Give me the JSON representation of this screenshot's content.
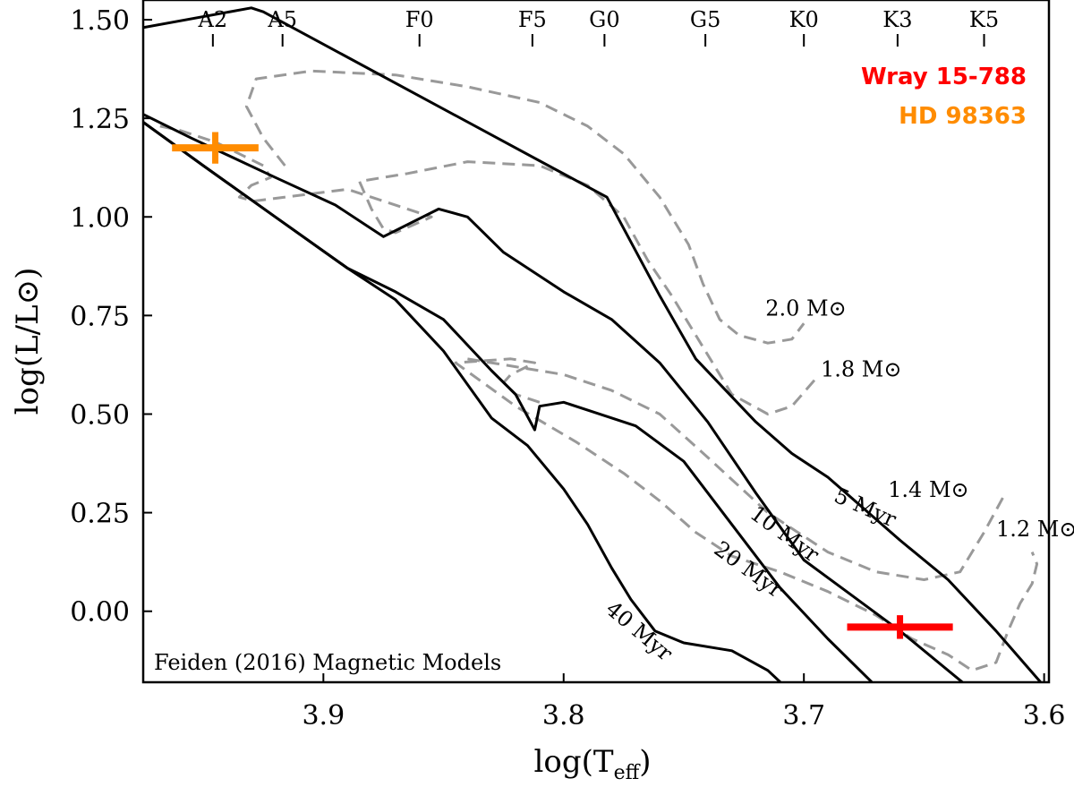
{
  "chart_data": {
    "type": "line",
    "xlabel": "log(T",
    "xlabel_sub": "eff",
    "xlabel_close": ")",
    "ylabel": "log(L/L",
    "ylabel_close": ")",
    "xlim": [
      3.975,
      3.598
    ],
    "ylim": [
      -0.18,
      1.55
    ],
    "xticks": [
      3.9,
      3.8,
      3.7,
      3.6
    ],
    "xtick_labels": [
      "3.9",
      "3.8",
      "3.7",
      "3.6"
    ],
    "yticks": [
      1.5,
      1.25,
      1.0,
      0.75,
      0.5,
      0.25,
      0.0
    ],
    "ytick_labels": [
      "1.50",
      "1.25",
      "1.00",
      "0.75",
      "0.50",
      "0.25",
      "0.00"
    ],
    "spectral_types": [
      {
        "label": "A2",
        "x": 3.946
      },
      {
        "label": "A5",
        "x": 3.917
      },
      {
        "label": "F0",
        "x": 3.86
      },
      {
        "label": "F5",
        "x": 3.813
      },
      {
        "label": "G0",
        "x": 3.783
      },
      {
        "label": "G5",
        "x": 3.741
      },
      {
        "label": "K0",
        "x": 3.7
      },
      {
        "label": "K3",
        "x": 3.661
      },
      {
        "label": "K5",
        "x": 3.625
      }
    ],
    "isochrones": [
      {
        "name": "5 Myr",
        "label": "5 Myr",
        "label_x": 3.688,
        "label_y": 0.28,
        "label_angle": 24,
        "points": [
          [
            3.975,
            1.48
          ],
          [
            3.93,
            1.53
          ],
          [
            3.925,
            1.52
          ],
          [
            3.782,
            1.05
          ],
          [
            3.76,
            0.8
          ],
          [
            3.745,
            0.64
          ],
          [
            3.72,
            0.48
          ],
          [
            3.705,
            0.4
          ],
          [
            3.69,
            0.34
          ],
          [
            3.66,
            0.18
          ],
          [
            3.64,
            0.08
          ],
          [
            3.62,
            -0.05
          ],
          [
            3.6,
            -0.19
          ]
        ]
      },
      {
        "name": "10 Myr",
        "label": "10 Myr",
        "label_x": 3.723,
        "label_y": 0.24,
        "label_angle": 36,
        "points": [
          [
            3.975,
            1.26
          ],
          [
            3.955,
            1.2
          ],
          [
            3.92,
            1.1
          ],
          [
            3.895,
            1.03
          ],
          [
            3.875,
            0.95
          ],
          [
            3.852,
            1.02
          ],
          [
            3.84,
            1.0
          ],
          [
            3.825,
            0.91
          ],
          [
            3.8,
            0.81
          ],
          [
            3.78,
            0.74
          ],
          [
            3.76,
            0.63
          ],
          [
            3.74,
            0.48
          ],
          [
            3.72,
            0.3
          ],
          [
            3.7,
            0.13
          ],
          [
            3.68,
            0.04
          ],
          [
            3.66,
            -0.05
          ],
          [
            3.632,
            -0.19
          ]
        ]
      },
      {
        "name": "20 Myr",
        "label": "20 Myr",
        "label_x": 3.738,
        "label_y": 0.15,
        "label_angle": 36,
        "points": [
          [
            3.975,
            1.24
          ],
          [
            3.95,
            1.13
          ],
          [
            3.92,
            1.0
          ],
          [
            3.89,
            0.87
          ],
          [
            3.87,
            0.81
          ],
          [
            3.85,
            0.74
          ],
          [
            3.83,
            0.61
          ],
          [
            3.82,
            0.55
          ],
          [
            3.812,
            0.46
          ],
          [
            3.81,
            0.52
          ],
          [
            3.8,
            0.53
          ],
          [
            3.79,
            0.51
          ],
          [
            3.77,
            0.47
          ],
          [
            3.75,
            0.38
          ],
          [
            3.73,
            0.22
          ],
          [
            3.71,
            0.06
          ],
          [
            3.69,
            -0.07
          ],
          [
            3.67,
            -0.19
          ]
        ]
      },
      {
        "name": "40 Myr",
        "label": "40 Myr",
        "label_x": 3.783,
        "label_y": 0.0,
        "label_angle": 40,
        "points": [
          [
            3.975,
            1.24
          ],
          [
            3.95,
            1.13
          ],
          [
            3.92,
            1.0
          ],
          [
            3.89,
            0.87
          ],
          [
            3.87,
            0.79
          ],
          [
            3.85,
            0.66
          ],
          [
            3.83,
            0.49
          ],
          [
            3.815,
            0.42
          ],
          [
            3.8,
            0.31
          ],
          [
            3.79,
            0.22
          ],
          [
            3.78,
            0.11
          ],
          [
            3.772,
            0.03
          ],
          [
            3.762,
            -0.05
          ],
          [
            3.75,
            -0.08
          ],
          [
            3.73,
            -0.1
          ],
          [
            3.715,
            -0.15
          ],
          [
            3.708,
            -0.19
          ]
        ]
      }
    ],
    "mass_tracks": [
      {
        "name": "2.0 M",
        "label": "2.0 M",
        "label_x": 3.716,
        "label_y": 0.75,
        "points": [
          [
            3.916,
            1.13
          ],
          [
            3.925,
            1.2
          ],
          [
            3.932,
            1.28
          ],
          [
            3.928,
            1.35
          ],
          [
            3.905,
            1.37
          ],
          [
            3.87,
            1.36
          ],
          [
            3.84,
            1.33
          ],
          [
            3.81,
            1.29
          ],
          [
            3.79,
            1.23
          ],
          [
            3.775,
            1.16
          ],
          [
            3.76,
            1.05
          ],
          [
            3.748,
            0.93
          ],
          [
            3.742,
            0.83
          ],
          [
            3.735,
            0.74
          ],
          [
            3.727,
            0.7
          ],
          [
            3.715,
            0.68
          ],
          [
            3.705,
            0.69
          ],
          [
            3.7,
            0.73
          ]
        ]
      },
      {
        "name": "1.8 M",
        "label": "1.8 M",
        "label_x": 3.693,
        "label_y": 0.595,
        "points": [
          [
            3.968,
            1.23
          ],
          [
            3.96,
            1.22
          ],
          [
            3.945,
            1.19
          ],
          [
            3.935,
            1.16
          ],
          [
            3.925,
            1.13
          ],
          [
            3.922,
            1.1
          ],
          [
            3.93,
            1.08
          ],
          [
            3.935,
            1.05
          ],
          [
            3.929,
            1.04
          ],
          [
            3.89,
            1.07
          ],
          [
            3.855,
            1.0
          ],
          [
            3.87,
            0.96
          ],
          [
            3.875,
            0.97
          ],
          [
            3.88,
            1.02
          ],
          [
            3.885,
            1.09
          ],
          [
            3.865,
            1.11
          ],
          [
            3.84,
            1.14
          ],
          [
            3.81,
            1.13
          ],
          [
            3.79,
            1.08
          ],
          [
            3.775,
            1.0
          ],
          [
            3.765,
            0.89
          ],
          [
            3.755,
            0.8
          ],
          [
            3.745,
            0.7
          ],
          [
            3.73,
            0.55
          ],
          [
            3.715,
            0.5
          ],
          [
            3.705,
            0.52
          ],
          [
            3.695,
            0.59
          ]
        ]
      },
      {
        "name": "1.4 M",
        "label": "1.4 M",
        "label_x": 3.665,
        "label_y": 0.29,
        "points": [
          [
            3.84,
            0.64
          ],
          [
            3.82,
            0.62
          ],
          [
            3.8,
            0.6
          ],
          [
            3.78,
            0.56
          ],
          [
            3.76,
            0.5
          ],
          [
            3.74,
            0.39
          ],
          [
            3.715,
            0.25
          ],
          [
            3.69,
            0.15
          ],
          [
            3.67,
            0.1
          ],
          [
            3.65,
            0.08
          ],
          [
            3.635,
            0.1
          ],
          [
            3.625,
            0.2
          ],
          [
            3.617,
            0.29
          ]
        ]
      },
      {
        "name": "1.2 M",
        "label": "1.2 M",
        "label_x": 3.62,
        "label_y": 0.19,
        "points": [
          [
            3.81,
            0.53
          ],
          [
            3.82,
            0.55
          ],
          [
            3.825,
            0.58
          ],
          [
            3.822,
            0.6
          ],
          [
            3.812,
            0.63
          ],
          [
            3.822,
            0.64
          ],
          [
            3.845,
            0.63
          ],
          [
            3.82,
            0.52
          ],
          [
            3.795,
            0.43
          ],
          [
            3.775,
            0.35
          ],
          [
            3.76,
            0.28
          ],
          [
            3.745,
            0.2
          ],
          [
            3.73,
            0.14
          ],
          [
            3.71,
            0.1
          ],
          [
            3.69,
            0.05
          ],
          [
            3.67,
            -0.01
          ],
          [
            3.655,
            -0.07
          ],
          [
            3.64,
            -0.11
          ],
          [
            3.63,
            -0.15
          ],
          [
            3.62,
            -0.13
          ],
          [
            3.615,
            -0.05
          ],
          [
            3.61,
            0.02
          ],
          [
            3.605,
            0.07
          ],
          [
            3.603,
            0.12
          ],
          [
            3.605,
            0.15
          ]
        ]
      }
    ],
    "stars": [
      {
        "name": "Wray 15-788",
        "color": "#ff0000",
        "x": 3.66,
        "y": -0.04,
        "xerr": 0.022,
        "yerr": 0.03
      },
      {
        "name": "HD 98363",
        "color": "#ff8c00",
        "x": 3.945,
        "y": 1.175,
        "xerr": 0.018,
        "yerr": 0.04
      }
    ],
    "annotation": "Feiden (2016) Magnetic Models",
    "sun_symbol": "⊙"
  }
}
